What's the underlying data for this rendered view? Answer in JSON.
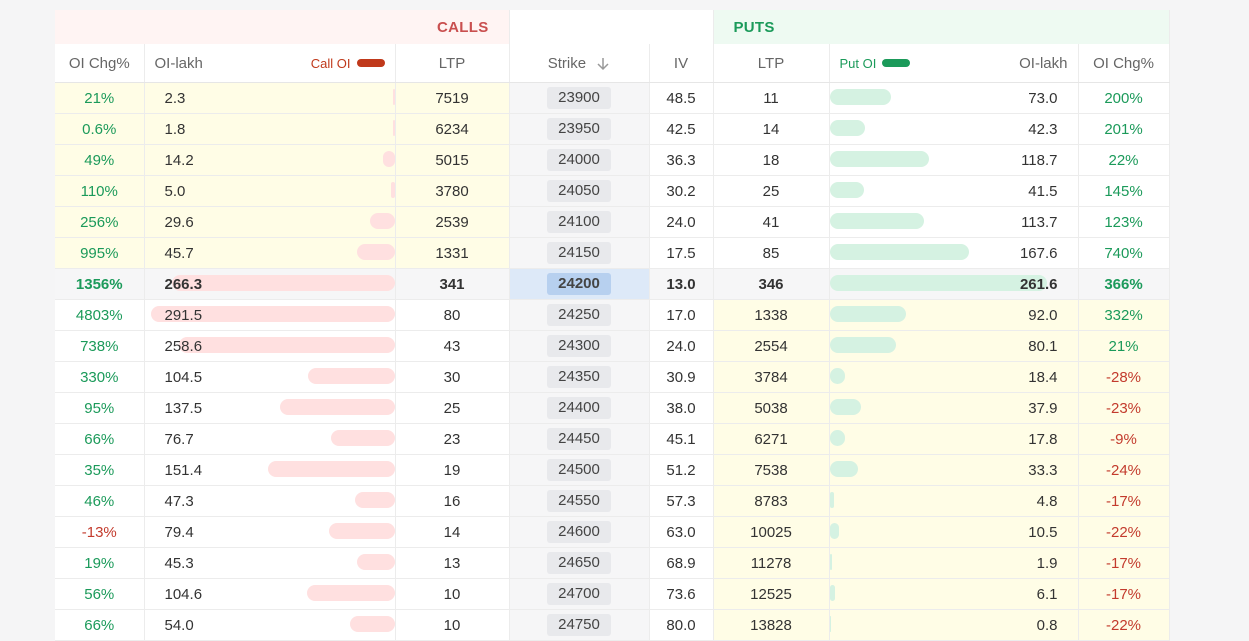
{
  "calls_label": "CALLS",
  "puts_label": "PUTS",
  "headers": {
    "call_oi_chg": "OI Chg%",
    "call_oi_lakh": "OI-lakh",
    "call_oi_legend": "Call OI",
    "call_ltp": "LTP",
    "strike": "Strike",
    "iv": "IV",
    "put_ltp": "LTP",
    "put_oi_legend": "Put OI",
    "put_oi_lakh": "OI-lakh",
    "put_oi_chg": "OI Chg%"
  },
  "colors": {
    "call_accent": "#c0391b",
    "put_accent": "#1b9a5a",
    "itm_bg": "#fffde6"
  },
  "atm_strike": "24200",
  "rows": [
    {
      "call_chg": "21%",
      "call_oi": "2.3",
      "call_ltp": "7519",
      "strike": "23900",
      "iv": "48.5",
      "put_ltp": "11",
      "put_oi": "73.0",
      "put_chg": "200%"
    },
    {
      "call_chg": "0.6%",
      "call_oi": "1.8",
      "call_ltp": "6234",
      "strike": "23950",
      "iv": "42.5",
      "put_ltp": "14",
      "put_oi": "42.3",
      "put_chg": "201%"
    },
    {
      "call_chg": "49%",
      "call_oi": "14.2",
      "call_ltp": "5015",
      "strike": "24000",
      "iv": "36.3",
      "put_ltp": "18",
      "put_oi": "118.7",
      "put_chg": "22%"
    },
    {
      "call_chg": "110%",
      "call_oi": "5.0",
      "call_ltp": "3780",
      "strike": "24050",
      "iv": "30.2",
      "put_ltp": "25",
      "put_oi": "41.5",
      "put_chg": "145%"
    },
    {
      "call_chg": "256%",
      "call_oi": "29.6",
      "call_ltp": "2539",
      "strike": "24100",
      "iv": "24.0",
      "put_ltp": "41",
      "put_oi": "113.7",
      "put_chg": "123%"
    },
    {
      "call_chg": "995%",
      "call_oi": "45.7",
      "call_ltp": "1331",
      "strike": "24150",
      "iv": "17.5",
      "put_ltp": "85",
      "put_oi": "167.6",
      "put_chg": "740%"
    },
    {
      "call_chg": "1356%",
      "call_oi": "266.3",
      "call_ltp": "341",
      "strike": "24200",
      "iv": "13.0",
      "put_ltp": "346",
      "put_oi": "261.6",
      "put_chg": "366%"
    },
    {
      "call_chg": "4803%",
      "call_oi": "291.5",
      "call_ltp": "80",
      "strike": "24250",
      "iv": "17.0",
      "put_ltp": "1338",
      "put_oi": "92.0",
      "put_chg": "332%"
    },
    {
      "call_chg": "738%",
      "call_oi": "258.6",
      "call_ltp": "43",
      "strike": "24300",
      "iv": "24.0",
      "put_ltp": "2554",
      "put_oi": "80.1",
      "put_chg": "21%"
    },
    {
      "call_chg": "330%",
      "call_oi": "104.5",
      "call_ltp": "30",
      "strike": "24350",
      "iv": "30.9",
      "put_ltp": "3784",
      "put_oi": "18.4",
      "put_chg": "-28%"
    },
    {
      "call_chg": "95%",
      "call_oi": "137.5",
      "call_ltp": "25",
      "strike": "24400",
      "iv": "38.0",
      "put_ltp": "5038",
      "put_oi": "37.9",
      "put_chg": "-23%"
    },
    {
      "call_chg": "66%",
      "call_oi": "76.7",
      "call_ltp": "23",
      "strike": "24450",
      "iv": "45.1",
      "put_ltp": "6271",
      "put_oi": "17.8",
      "put_chg": "-9%"
    },
    {
      "call_chg": "35%",
      "call_oi": "151.4",
      "call_ltp": "19",
      "strike": "24500",
      "iv": "51.2",
      "put_ltp": "7538",
      "put_oi": "33.3",
      "put_chg": "-24%"
    },
    {
      "call_chg": "46%",
      "call_oi": "47.3",
      "call_ltp": "16",
      "strike": "24550",
      "iv": "57.3",
      "put_ltp": "8783",
      "put_oi": "4.8",
      "put_chg": "-17%"
    },
    {
      "call_chg": "-13%",
      "call_oi": "79.4",
      "call_ltp": "14",
      "strike": "24600",
      "iv": "63.0",
      "put_ltp": "10025",
      "put_oi": "10.5",
      "put_chg": "-22%"
    },
    {
      "call_chg": "19%",
      "call_oi": "45.3",
      "call_ltp": "13",
      "strike": "24650",
      "iv": "68.9",
      "put_ltp": "11278",
      "put_oi": "1.9",
      "put_chg": "-17%"
    },
    {
      "call_chg": "56%",
      "call_oi": "104.6",
      "call_ltp": "10",
      "strike": "24700",
      "iv": "73.6",
      "put_ltp": "12525",
      "put_oi": "6.1",
      "put_chg": "-17%"
    },
    {
      "call_chg": "66%",
      "call_oi": "54.0",
      "call_ltp": "10",
      "strike": "24750",
      "iv": "80.0",
      "put_ltp": "13828",
      "put_oi": "0.8",
      "put_chg": "-22%"
    }
  ]
}
